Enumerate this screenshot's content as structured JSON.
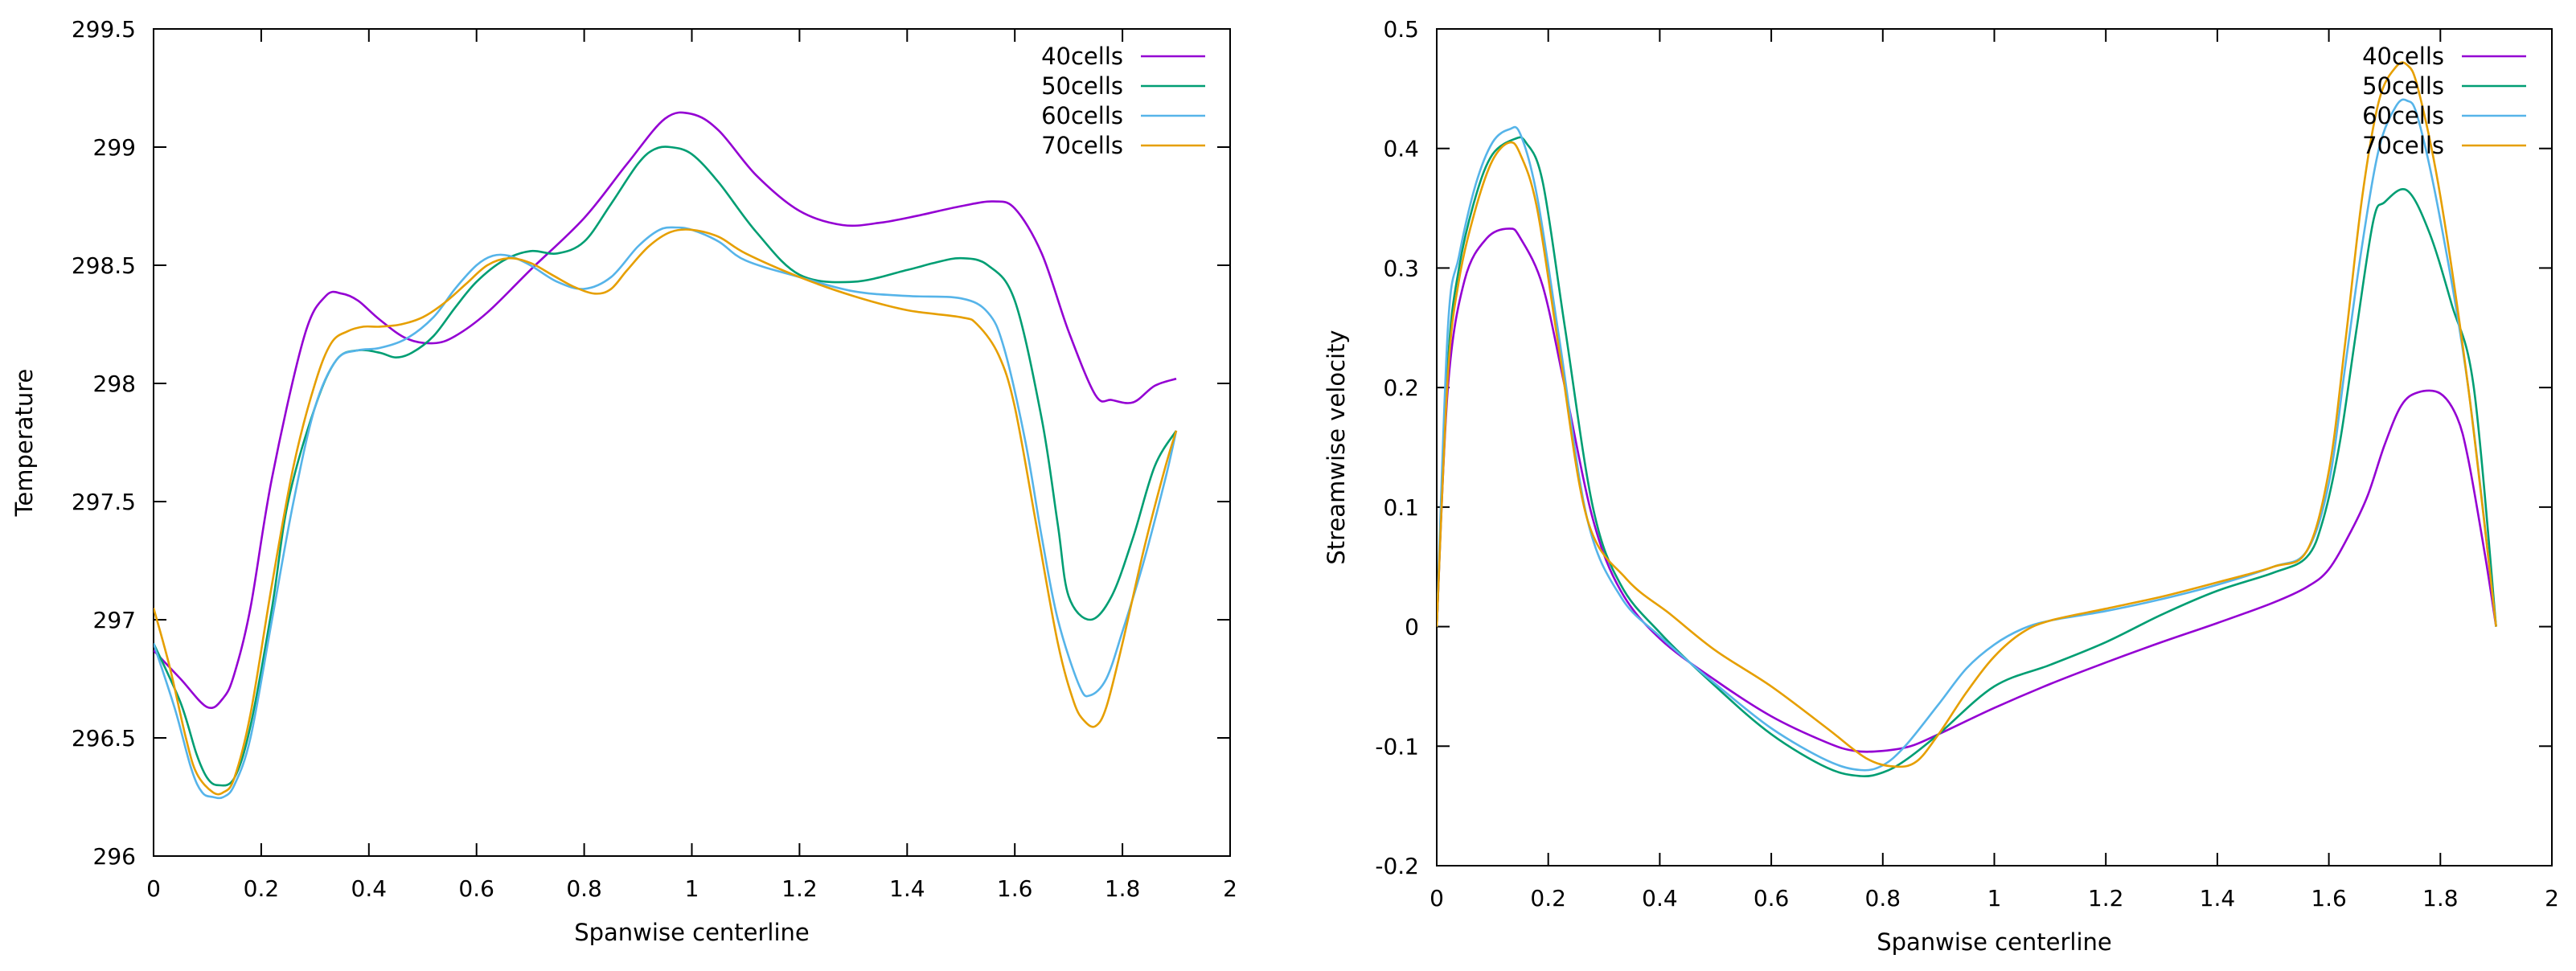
{
  "chart_data": [
    {
      "type": "line",
      "title": "",
      "xlabel": "Spanwise centerline",
      "ylabel": "Temperature",
      "xlim": [
        0,
        2
      ],
      "ylim": [
        296,
        299.5
      ],
      "xticks": [
        "0",
        "0.2",
        "0.4",
        "0.6",
        "0.8",
        "1",
        "1.2",
        "1.4",
        "1.6",
        "1.8",
        "2"
      ],
      "yticks": [
        "296",
        "296.5",
        "297",
        "297.5",
        "298",
        "298.5",
        "299",
        "299.5"
      ],
      "legend_position": "top-right",
      "grid": false,
      "series": [
        {
          "name": "40cells",
          "color": "#9400d3",
          "x": [
            0,
            0.05,
            0.1,
            0.13,
            0.15,
            0.18,
            0.22,
            0.28,
            0.32,
            0.35,
            0.38,
            0.42,
            0.47,
            0.52,
            0.56,
            0.62,
            0.7,
            0.8,
            0.88,
            0.95,
            1.0,
            1.05,
            1.12,
            1.2,
            1.28,
            1.35,
            1.42,
            1.5,
            1.56,
            1.6,
            1.65,
            1.7,
            1.75,
            1.78,
            1.82,
            1.86,
            1.9
          ],
          "y": [
            296.87,
            296.75,
            296.63,
            296.67,
            296.77,
            297.05,
            297.6,
            298.2,
            298.37,
            298.38,
            298.35,
            298.27,
            298.19,
            298.17,
            298.2,
            298.3,
            298.48,
            298.7,
            298.93,
            299.12,
            299.14,
            299.07,
            298.88,
            298.73,
            298.67,
            298.68,
            298.71,
            298.75,
            298.77,
            298.74,
            298.55,
            298.22,
            297.95,
            297.93,
            297.92,
            297.99,
            298.02
          ]
        },
        {
          "name": "50cells",
          "color": "#009e73",
          "x": [
            0,
            0.05,
            0.08,
            0.1,
            0.12,
            0.15,
            0.18,
            0.22,
            0.25,
            0.3,
            0.34,
            0.38,
            0.42,
            0.45,
            0.48,
            0.52,
            0.56,
            0.6,
            0.65,
            0.7,
            0.75,
            0.8,
            0.85,
            0.9,
            0.93,
            0.96,
            1.0,
            1.05,
            1.12,
            1.2,
            1.3,
            1.4,
            1.45,
            1.5,
            1.55,
            1.6,
            1.65,
            1.68,
            1.7,
            1.74,
            1.78,
            1.82,
            1.86,
            1.9
          ],
          "y": [
            296.9,
            296.65,
            296.43,
            296.33,
            296.3,
            296.33,
            296.55,
            297.05,
            297.5,
            297.9,
            298.1,
            298.14,
            298.13,
            298.11,
            298.13,
            298.2,
            298.32,
            298.43,
            298.52,
            298.56,
            298.55,
            298.6,
            298.76,
            298.93,
            298.99,
            299.0,
            298.97,
            298.85,
            298.64,
            298.46,
            298.43,
            298.48,
            298.51,
            298.53,
            298.5,
            298.35,
            297.85,
            297.4,
            297.1,
            297.0,
            297.1,
            297.35,
            297.65,
            297.8
          ]
        },
        {
          "name": "60cells",
          "color": "#56b4e9",
          "x": [
            0,
            0.04,
            0.07,
            0.09,
            0.11,
            0.13,
            0.15,
            0.18,
            0.22,
            0.26,
            0.3,
            0.34,
            0.38,
            0.42,
            0.47,
            0.52,
            0.56,
            0.6,
            0.63,
            0.66,
            0.7,
            0.75,
            0.8,
            0.85,
            0.9,
            0.94,
            0.97,
            1.0,
            1.05,
            1.1,
            1.2,
            1.3,
            1.4,
            1.5,
            1.55,
            1.58,
            1.62,
            1.65,
            1.68,
            1.72,
            1.74,
            1.77,
            1.8,
            1.84,
            1.88,
            1.9
          ],
          "y": [
            296.9,
            296.62,
            296.37,
            296.27,
            296.25,
            296.25,
            296.3,
            296.5,
            297.0,
            297.5,
            297.9,
            298.1,
            298.14,
            298.15,
            298.19,
            298.28,
            298.4,
            298.5,
            298.54,
            298.54,
            298.5,
            298.43,
            298.4,
            298.45,
            298.58,
            298.65,
            298.66,
            298.65,
            298.6,
            298.52,
            298.45,
            298.39,
            298.37,
            298.36,
            298.3,
            298.15,
            297.75,
            297.35,
            297.0,
            296.72,
            296.68,
            296.75,
            296.95,
            297.25,
            297.6,
            297.8
          ]
        },
        {
          "name": "70cells",
          "color": "#e69f00",
          "x": [
            0,
            0.03,
            0.06,
            0.08,
            0.11,
            0.13,
            0.15,
            0.18,
            0.22,
            0.26,
            0.3,
            0.33,
            0.36,
            0.39,
            0.42,
            0.46,
            0.5,
            0.54,
            0.58,
            0.62,
            0.66,
            0.7,
            0.74,
            0.78,
            0.82,
            0.85,
            0.88,
            0.92,
            0.96,
            1.0,
            1.05,
            1.1,
            1.2,
            1.3,
            1.4,
            1.5,
            1.53,
            1.57,
            1.6,
            1.64,
            1.68,
            1.71,
            1.73,
            1.75,
            1.77,
            1.8,
            1.84,
            1.88,
            1.9
          ],
          "y": [
            297.05,
            296.8,
            296.5,
            296.35,
            296.27,
            296.27,
            296.33,
            296.6,
            297.15,
            297.65,
            298.0,
            298.17,
            298.22,
            298.24,
            298.24,
            298.25,
            298.28,
            298.34,
            298.42,
            298.5,
            298.53,
            298.51,
            298.46,
            298.41,
            298.38,
            298.4,
            298.48,
            298.58,
            298.64,
            298.65,
            298.62,
            298.55,
            298.45,
            298.37,
            298.31,
            298.28,
            298.25,
            298.12,
            297.9,
            297.4,
            296.9,
            296.65,
            296.57,
            296.55,
            296.63,
            296.9,
            297.3,
            297.65,
            297.8
          ]
        }
      ]
    },
    {
      "type": "line",
      "title": "",
      "xlabel": "Spanwise centerline",
      "ylabel": "Streamwise velocity",
      "xlim": [
        0,
        2
      ],
      "ylim": [
        -0.2,
        0.5
      ],
      "xticks": [
        "0",
        "0.2",
        "0.4",
        "0.6",
        "0.8",
        "1",
        "1.2",
        "1.4",
        "1.6",
        "1.8",
        "2"
      ],
      "yticks": [
        "-0.2",
        "-0.1",
        "0",
        "0.1",
        "0.2",
        "0.3",
        "0.4",
        "0.5"
      ],
      "legend_position": "top-right",
      "grid": false,
      "series": [
        {
          "name": "40cells",
          "color": "#9400d3",
          "x": [
            0,
            0.02,
            0.05,
            0.09,
            0.13,
            0.15,
            0.19,
            0.23,
            0.28,
            0.33,
            0.4,
            0.5,
            0.6,
            0.7,
            0.75,
            0.8,
            0.85,
            0.9,
            1.0,
            1.1,
            1.2,
            1.3,
            1.4,
            1.5,
            1.56,
            1.6,
            1.64,
            1.67,
            1.7,
            1.73,
            1.76,
            1.8,
            1.83,
            1.85,
            1.88,
            1.9
          ],
          "y": [
            0.0,
            0.2,
            0.29,
            0.325,
            0.333,
            0.325,
            0.285,
            0.2,
            0.09,
            0.03,
            -0.01,
            -0.045,
            -0.075,
            -0.097,
            -0.104,
            -0.104,
            -0.1,
            -0.09,
            -0.068,
            -0.048,
            -0.03,
            -0.013,
            0.003,
            0.02,
            0.033,
            0.048,
            0.08,
            0.11,
            0.152,
            0.185,
            0.196,
            0.195,
            0.175,
            0.14,
            0.06,
            0.0
          ]
        },
        {
          "name": "50cells",
          "color": "#009e73",
          "x": [
            0,
            0.02,
            0.04,
            0.07,
            0.1,
            0.14,
            0.16,
            0.19,
            0.23,
            0.28,
            0.33,
            0.4,
            0.5,
            0.6,
            0.7,
            0.76,
            0.8,
            0.84,
            0.9,
            1.0,
            1.1,
            1.2,
            1.3,
            1.4,
            1.5,
            1.56,
            1.59,
            1.62,
            1.65,
            1.68,
            1.7,
            1.74,
            1.78,
            1.82,
            1.86,
            1.9
          ],
          "y": [
            0.0,
            0.22,
            0.3,
            0.36,
            0.395,
            0.408,
            0.405,
            0.372,
            0.25,
            0.1,
            0.035,
            -0.005,
            -0.05,
            -0.09,
            -0.118,
            -0.125,
            -0.122,
            -0.112,
            -0.09,
            -0.05,
            -0.032,
            -0.013,
            0.01,
            0.03,
            0.045,
            0.058,
            0.09,
            0.155,
            0.25,
            0.34,
            0.355,
            0.365,
            0.33,
            0.27,
            0.2,
            0.0
          ]
        },
        {
          "name": "60cells",
          "color": "#56b4e9",
          "x": [
            0,
            0.02,
            0.04,
            0.07,
            0.1,
            0.13,
            0.15,
            0.18,
            0.22,
            0.27,
            0.33,
            0.4,
            0.5,
            0.6,
            0.7,
            0.76,
            0.8,
            0.84,
            0.9,
            0.95,
            1.0,
            1.05,
            1.1,
            1.2,
            1.3,
            1.4,
            1.5,
            1.56,
            1.6,
            1.63,
            1.66,
            1.69,
            1.72,
            1.74,
            1.76,
            1.8,
            1.85,
            1.9
          ],
          "y": [
            0.0,
            0.25,
            0.31,
            0.37,
            0.405,
            0.416,
            0.412,
            0.36,
            0.24,
            0.09,
            0.025,
            -0.008,
            -0.048,
            -0.085,
            -0.112,
            -0.12,
            -0.116,
            -0.1,
            -0.065,
            -0.035,
            -0.015,
            -0.002,
            0.005,
            0.013,
            0.023,
            0.035,
            0.05,
            0.063,
            0.12,
            0.22,
            0.32,
            0.4,
            0.435,
            0.44,
            0.425,
            0.34,
            0.2,
            0.0
          ]
        },
        {
          "name": "70cells",
          "color": "#e69f00",
          "x": [
            0,
            0.02,
            0.04,
            0.07,
            0.1,
            0.13,
            0.15,
            0.18,
            0.22,
            0.27,
            0.34,
            0.42,
            0.5,
            0.6,
            0.7,
            0.77,
            0.82,
            0.86,
            0.9,
            0.95,
            1.0,
            1.05,
            1.1,
            1.2,
            1.3,
            1.4,
            1.5,
            1.56,
            1.6,
            1.63,
            1.66,
            1.69,
            1.72,
            1.74,
            1.76,
            1.8,
            1.85,
            1.9
          ],
          "y": [
            0.0,
            0.21,
            0.29,
            0.35,
            0.39,
            0.405,
            0.395,
            0.35,
            0.23,
            0.09,
            0.04,
            0.01,
            -0.02,
            -0.05,
            -0.085,
            -0.11,
            -0.117,
            -0.113,
            -0.09,
            -0.055,
            -0.025,
            -0.005,
            0.005,
            0.015,
            0.025,
            0.037,
            0.05,
            0.063,
            0.13,
            0.24,
            0.36,
            0.44,
            0.468,
            0.47,
            0.45,
            0.36,
            0.2,
            0.0
          ]
        }
      ]
    }
  ]
}
